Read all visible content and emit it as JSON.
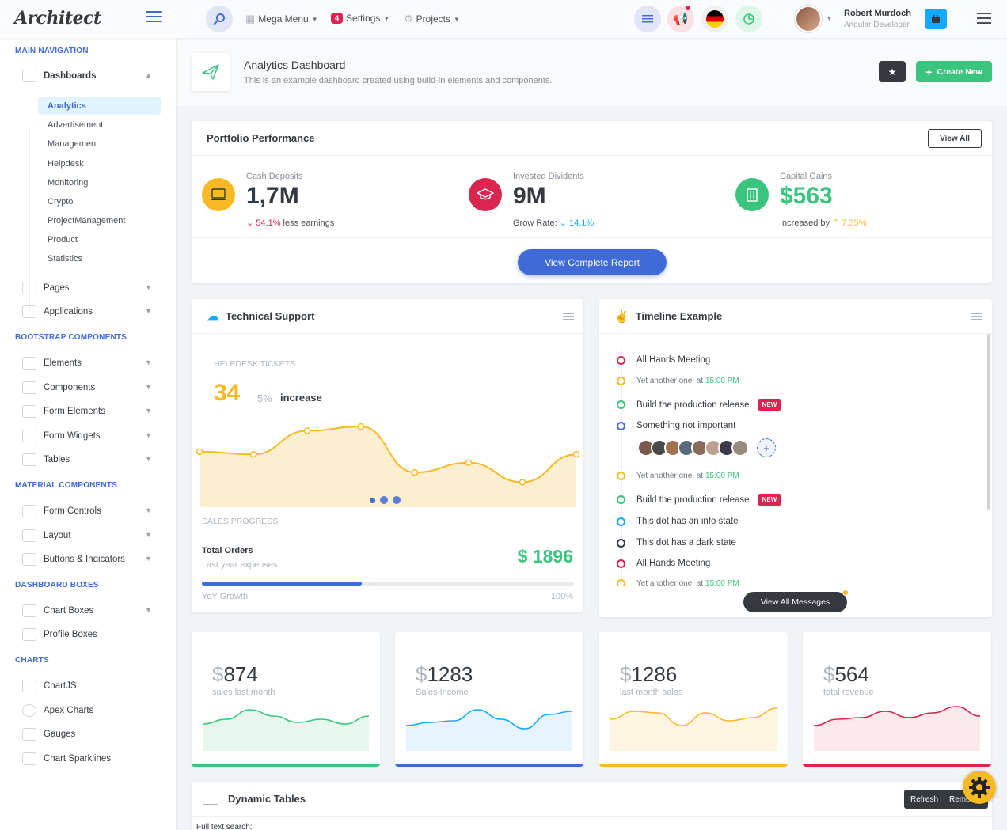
{
  "header": {
    "logo": "Architect",
    "mega_menu": "Mega Menu",
    "settings_badge": "4",
    "settings": "Settings",
    "projects": "Projects",
    "user_name": "Robert Murdoch",
    "user_role": "Angular Developer"
  },
  "sidebar": {
    "sections": [
      "Main Navigation",
      "Bootstrap Components",
      "Material Components",
      "Dashboard Boxes",
      "Charts"
    ],
    "dashboards": "Dashboards",
    "dashboard_subs": [
      "Analytics",
      "Advertisement",
      "Management",
      "Helpdesk",
      "Monitoring",
      "Crypto",
      "ProjectManagement",
      "Product",
      "Statistics"
    ],
    "main_items": [
      "Pages",
      "Applications"
    ],
    "bootstrap_items": [
      "Elements",
      "Components",
      "Form Elements",
      "Form Widgets",
      "Tables"
    ],
    "material_items": [
      "Form Controls",
      "Layout",
      "Buttons & Indicators"
    ],
    "box_items": [
      "Chart Boxes",
      "Profile Boxes"
    ],
    "chart_items": [
      "ChartJS",
      "Apex Charts",
      "Gauges",
      "Chart Sparklines"
    ]
  },
  "page": {
    "title": "Analytics Dashboard",
    "subtitle": "This is an example dashboard created using build-in elements and components.",
    "create_new": "Create New"
  },
  "portfolio": {
    "title": "Portfolio Performance",
    "view_all": "View All",
    "metrics": [
      {
        "label": "Cash Deposits",
        "value": "1,7M",
        "delta": "54.1%",
        "note": "less earnings",
        "color": "#f7b924"
      },
      {
        "label": "Invested Dividents",
        "value": "9M",
        "note": "Grow Rate:",
        "delta": "14.1%",
        "color": "#d92550"
      },
      {
        "label": "Capital Gains",
        "value": "$563",
        "note": "Increased by",
        "delta": "7.35%",
        "color": "#3ac47d"
      }
    ],
    "report_button": "View Complete Report"
  },
  "support": {
    "title": "Technical Support",
    "helpdesk_label": "HELPDESK TICKETS",
    "big_value": "34",
    "pct": "5%",
    "pct_label": "increase",
    "sales_progress": "SALES PROGRESS",
    "orders_title": "Total Orders",
    "orders_sub": "Last year expenses",
    "orders_value": "$ 1896",
    "yoy": "YoY Growth",
    "yoy_pct": "100%",
    "progress_fraction": 0.43,
    "chart_values": [
      60,
      58,
      75,
      78,
      45,
      52,
      38,
      58
    ]
  },
  "timeline": {
    "title": "Timeline Example",
    "items": [
      {
        "text": "All Hands Meeting",
        "color": "#d92550"
      },
      {
        "small": "Yet another one, at ",
        "time": "15:00 PM",
        "color": "#f7b924"
      },
      {
        "text": "Build the production release",
        "badge": "NEW",
        "color": "#3ac47d"
      },
      {
        "text": "Something not important",
        "color": "#3f6ad8"
      },
      {
        "small": "Yet another one, at ",
        "time": "15:00 PM",
        "color": "#f7b924"
      },
      {
        "text": "Build the production release",
        "badge": "NEW",
        "color": "#3ac47d"
      },
      {
        "text": "This dot has an info state",
        "color": "#16aaff"
      },
      {
        "text": "This dot has a dark state",
        "color": "#343a40"
      },
      {
        "text": "All Hands Meeting",
        "color": "#d92550"
      },
      {
        "small": "Yet another one, at ",
        "time": "15:00 PM",
        "color": "#f7b924"
      }
    ],
    "view_all": "View All Messages"
  },
  "minis": [
    {
      "currency": "$",
      "value": "874",
      "label": "sales last month",
      "color": "#3ac47d",
      "fill": "#e8f7ee"
    },
    {
      "currency": "$",
      "value": "1283",
      "label": "Sales Income",
      "color": "#16aaff",
      "fill": "#e8f4fd"
    },
    {
      "currency": "$",
      "value": "1286",
      "label": "last month sales",
      "color": "#f7b924",
      "fill": "#fdf5e0"
    },
    {
      "currency": "$",
      "value": "564",
      "label": "total revenue",
      "color": "#d92550",
      "fill": "#fbe9ec"
    }
  ],
  "dynamic": {
    "title": "Dynamic Tables",
    "refresh": "Refresh",
    "remove": "Remove",
    "search_label": "Full text search:"
  }
}
